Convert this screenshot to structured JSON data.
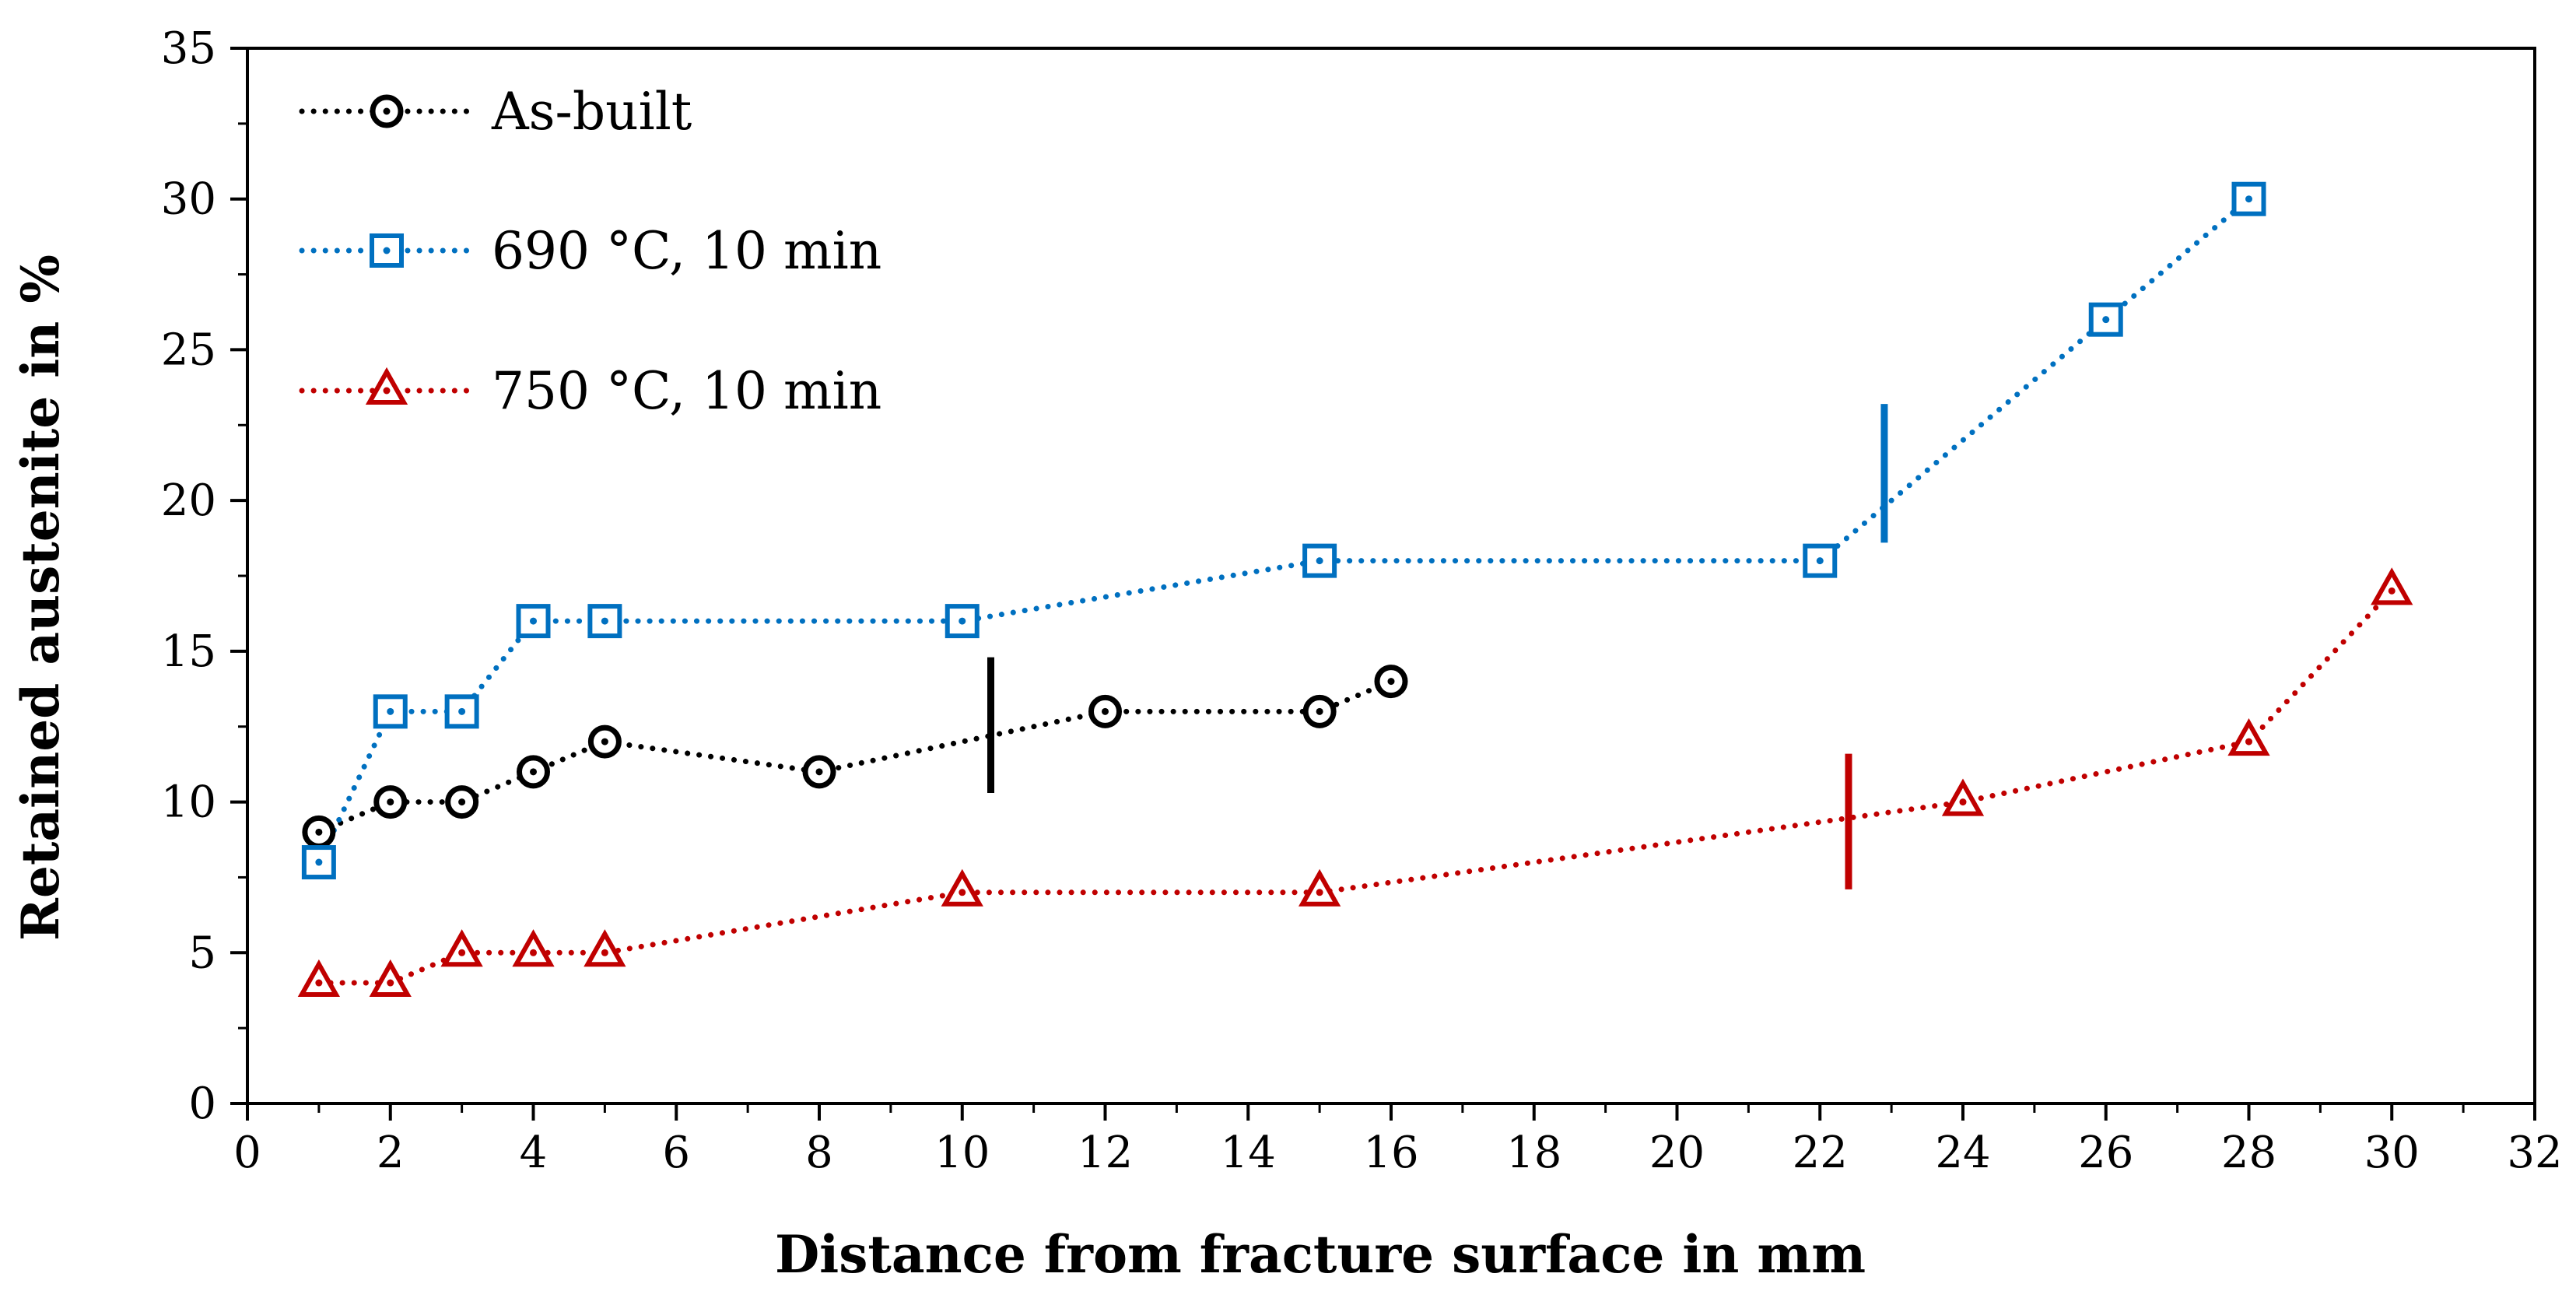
{
  "chart_data": {
    "type": "line",
    "title": "",
    "xlabel": "Distance from fracture surface in mm",
    "ylabel": "Retained austenite in %",
    "xlim": [
      0,
      32
    ],
    "ylim": [
      0,
      35
    ],
    "xticks": [
      0,
      2,
      4,
      6,
      8,
      10,
      12,
      14,
      16,
      18,
      20,
      22,
      24,
      26,
      28,
      30,
      32
    ],
    "yticks": [
      0,
      5,
      10,
      15,
      20,
      25,
      30,
      35
    ],
    "grid": false,
    "legend_position": "top-left",
    "series": [
      {
        "name": "As-built",
        "color": "#000000",
        "marker": "circle",
        "x": [
          1,
          2,
          3,
          4,
          5,
          8,
          12,
          15,
          16
        ],
        "y": [
          9,
          10,
          10,
          11,
          12,
          11,
          13,
          13,
          14
        ]
      },
      {
        "name": "690 °C, 10 min",
        "color": "#0070C0",
        "marker": "square",
        "x": [
          1,
          2,
          3,
          4,
          5,
          10,
          15,
          22,
          26,
          28
        ],
        "y": [
          8,
          13,
          13,
          16,
          16,
          16,
          18,
          18,
          26,
          30
        ]
      },
      {
        "name": "750 °C, 10 min",
        "color": "#C00000",
        "marker": "triangle",
        "x": [
          1,
          2,
          3,
          4,
          5,
          10,
          15,
          24,
          28,
          30
        ],
        "y": [
          4,
          4,
          5,
          5,
          5,
          7,
          7,
          10,
          12,
          17
        ]
      }
    ],
    "annotations": [
      {
        "type": "vertical-marker",
        "series": "As-built",
        "color": "#000000",
        "x": 10.4,
        "y_range": [
          10.3,
          14.8
        ]
      },
      {
        "type": "vertical-marker",
        "series": "690 °C, 10 min",
        "color": "#0070C0",
        "x": 22.9,
        "y_range": [
          18.6,
          23.2
        ]
      },
      {
        "type": "vertical-marker",
        "series": "750 °C, 10 min",
        "color": "#C00000",
        "x": 22.4,
        "y_range": [
          7.1,
          11.6
        ]
      }
    ]
  }
}
